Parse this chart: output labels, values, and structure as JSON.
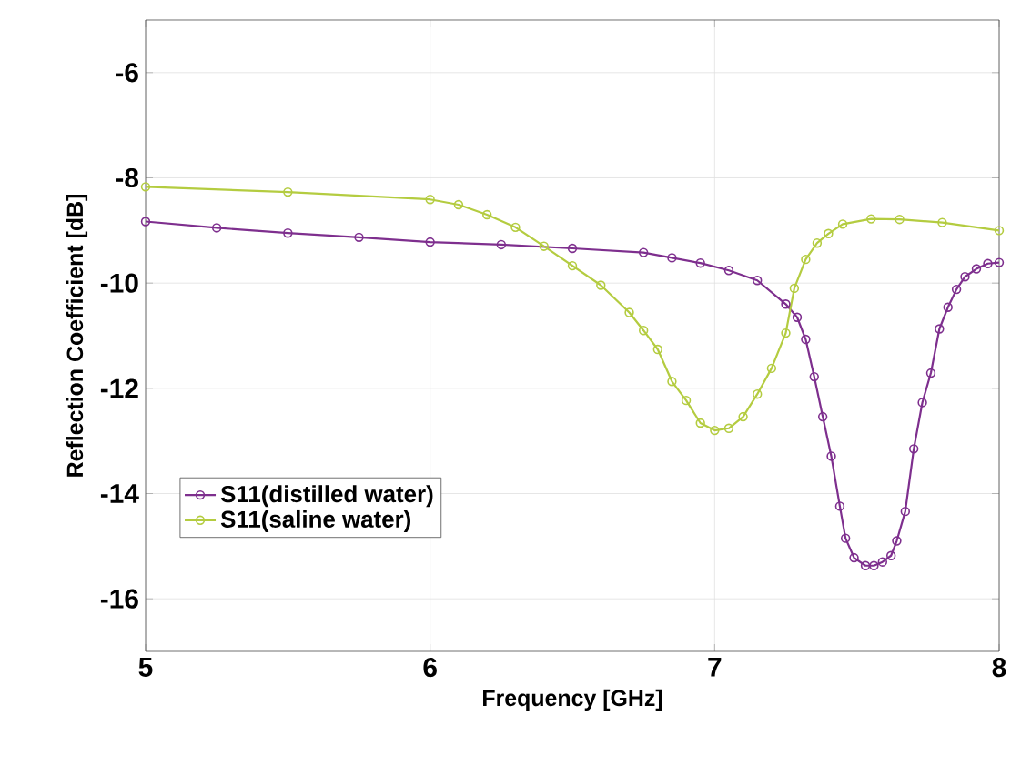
{
  "chart_data": {
    "type": "line",
    "xlabel": "Frequency [GHz]",
    "ylabel": "Reflection Coefficient [dB]",
    "xlim": [
      5,
      8
    ],
    "ylim": [
      -17,
      -5
    ],
    "xticks": [
      5,
      6,
      7,
      8
    ],
    "yticks": [
      -16,
      -14,
      -12,
      -10,
      -8,
      -6
    ],
    "grid": true,
    "legend": "bottom left",
    "marker": "circle",
    "line_style": "solid",
    "series": [
      {
        "name": "S11(distilled water)",
        "color": "#7e2f8e",
        "x": [
          5,
          5.25,
          5.5,
          5.75,
          6,
          6.25,
          6.5,
          6.75,
          6.85,
          6.95,
          7.05,
          7.15,
          7.25,
          7.29,
          7.32,
          7.35,
          7.38,
          7.41,
          7.44,
          7.46,
          7.49,
          7.53,
          7.56,
          7.59,
          7.62,
          7.64,
          7.67,
          7.7,
          7.73,
          7.76,
          7.79,
          7.82,
          7.85,
          7.88,
          7.92,
          7.96,
          8
        ],
        "values": [
          -8.83,
          -8.95,
          -9.05,
          -9.13,
          -9.22,
          -9.27,
          -9.34,
          -9.42,
          -9.52,
          -9.62,
          -9.76,
          -9.95,
          -10.4,
          -10.65,
          -11.07,
          -11.78,
          -12.54,
          -13.29,
          -14.24,
          -14.85,
          -15.22,
          -15.37,
          -15.37,
          -15.3,
          -15.18,
          -14.9,
          -14.34,
          -13.15,
          -12.27,
          -11.71,
          -10.87,
          -10.46,
          -10.12,
          -9.88,
          -9.73,
          -9.63,
          -9.61
        ]
      },
      {
        "name": "S11(saline water)",
        "color": "#b4cc40",
        "x": [
          5,
          5.5,
          6,
          6.1,
          6.2,
          6.3,
          6.4,
          6.5,
          6.6,
          6.7,
          6.75,
          6.8,
          6.85,
          6.9,
          6.95,
          7,
          7.05,
          7.1,
          7.15,
          7.2,
          7.25,
          7.28,
          7.32,
          7.36,
          7.4,
          7.45,
          7.55,
          7.65,
          7.8,
          8
        ],
        "values": [
          -8.17,
          -8.27,
          -8.41,
          -8.51,
          -8.7,
          -8.94,
          -9.3,
          -9.67,
          -10.04,
          -10.56,
          -10.9,
          -11.26,
          -11.87,
          -12.23,
          -12.66,
          -12.8,
          -12.76,
          -12.54,
          -12.11,
          -11.62,
          -10.95,
          -10.1,
          -9.55,
          -9.24,
          -9.06,
          -8.88,
          -8.78,
          -8.79,
          -8.85,
          -9.0
        ]
      }
    ]
  }
}
